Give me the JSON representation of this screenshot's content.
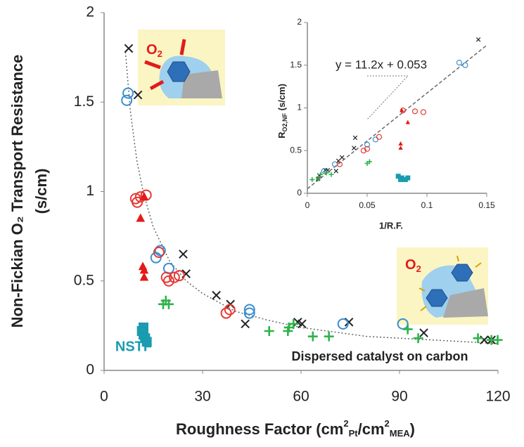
{
  "chart_data": [
    {
      "type": "scatter",
      "y_title": "Non-Fickian O₂ Transport Resistance",
      "y_title_2": "(s/cm)",
      "x_title": [
        "Roughness Factor (cm",
        "2",
        "Pt",
        "/cm",
        "2",
        "MEA",
        ")"
      ],
      "xlim": [
        0,
        120
      ],
      "xticks": [
        0,
        30,
        60,
        90,
        120
      ],
      "ylim": [
        0,
        2
      ],
      "yticks": [
        0,
        0.5,
        1,
        {
          "value": 1.5,
          "label": "1.5"
        },
        2
      ],
      "annotations": [
        "NSTF",
        "Dispersed catalyst on carbon"
      ],
      "illustration_labels": [
        [
          "O",
          "2"
        ],
        [
          "O",
          "2"
        ]
      ],
      "fit": {
        "color": "#666",
        "x": [
          6.5,
          8,
          10,
          12,
          15,
          20,
          25,
          30,
          40,
          50,
          60,
          80,
          100,
          120
        ],
        "values": [
          1.78,
          1.45,
          1.17,
          0.99,
          0.8,
          0.61,
          0.5,
          0.43,
          0.33,
          0.28,
          0.24,
          0.19,
          0.17,
          0.15
        ]
      },
      "series": [
        {
          "marker": "x",
          "color": "#222",
          "x": [
            7.5,
            10.3,
            24.1,
            25,
            34.2,
            38.5,
            43,
            59,
            60.3,
            74.6,
            97.4,
            115.8,
            118
          ],
          "values": [
            1.8,
            1.54,
            0.65,
            0.54,
            0.42,
            0.37,
            0.26,
            0.27,
            0.26,
            0.27,
            0.21,
            0.17,
            0.17
          ]
        },
        {
          "marker": "circle",
          "color": "#3a8fd0",
          "x": [
            6.9,
            7.3,
            15.8,
            17.1,
            19.7,
            44.3,
            44.3,
            72.8,
            91
          ],
          "values": [
            1.51,
            1.55,
            0.63,
            0.67,
            0.57,
            0.34,
            0.32,
            0.26,
            0.26
          ]
        },
        {
          "marker": "circle",
          "color": "#e53935",
          "x": [
            9.6,
            10.1,
            11.1,
            12.8,
            16.7,
            19,
            19.7,
            21.4,
            22.9,
            37.2,
            38.3
          ],
          "values": [
            0.96,
            0.94,
            0.97,
            0.98,
            0.66,
            0.52,
            0.5,
            0.52,
            0.53,
            0.32,
            0.34
          ]
        },
        {
          "marker": "triangle",
          "color": "#e31b1b",
          "x": [
            12.2,
            11.1,
            11.8,
            12.2,
            12.2
          ],
          "values": [
            0.97,
            0.85,
            0.58,
            0.52,
            0.56
          ]
        },
        {
          "marker": "plus",
          "color": "#2db34a",
          "x": [
            18,
            18.8,
            19.7,
            50.3,
            56,
            56.3,
            57.7,
            63.6,
            68.5,
            92.5,
            95.7,
            113.9,
            118,
            119.9
          ],
          "values": [
            0.37,
            0.39,
            0.37,
            0.22,
            0.22,
            0.24,
            0.26,
            0.19,
            0.19,
            0.23,
            0.18,
            0.18,
            0.17,
            0.17
          ]
        },
        {
          "marker": "square",
          "color": "#1a9bb0",
          "x": [
            11.5,
            12,
            12.5,
            13,
            12
          ],
          "values": [
            0.22,
            0.2,
            0.18,
            0.16,
            0.24
          ]
        }
      ]
    },
    {
      "type": "scatter",
      "y_title": [
        "R",
        "O2,NF",
        " (s/cm)"
      ],
      "x_title": "1/R.F.",
      "equation": "y = 11.2x + 0.053",
      "xlim": [
        0,
        0.15
      ],
      "xticks": [
        0,
        0.05,
        {
          "value": 0.1,
          "label": "0.1"
        },
        0.15
      ],
      "ylim": [
        0,
        2
      ],
      "yticks": [
        0,
        0.5,
        1,
        {
          "value": 1.5,
          "label": "1.5"
        },
        2
      ],
      "fit": {
        "color": "#666",
        "x": [
          0,
          0.15
        ],
        "values": [
          0.053,
          1.733
        ]
      },
      "series": [
        {
          "marker": "x",
          "color": "#222",
          "x": [
            0.143,
            0.04,
            0.039,
            0.029,
            0.026,
            0.024,
            0.017,
            0.015,
            0.01,
            0.009
          ],
          "values": [
            1.8,
            0.65,
            0.53,
            0.42,
            0.38,
            0.26,
            0.27,
            0.27,
            0.21,
            0.17
          ]
        },
        {
          "marker": "circle",
          "color": "#3a8fd0",
          "x": [
            0.127,
            0.132,
            0.05,
            0.057,
            0.023,
            0.014
          ],
          "values": [
            1.53,
            1.5,
            0.57,
            0.63,
            0.34,
            0.26
          ]
        },
        {
          "marker": "circle",
          "color": "#e53935",
          "x": [
            0.09,
            0.097,
            0.08,
            0.06,
            0.05,
            0.047,
            0.027
          ],
          "values": [
            0.96,
            0.95,
            0.97,
            0.66,
            0.52,
            0.5,
            0.34
          ]
        },
        {
          "marker": "triangle",
          "color": "#e31b1b",
          "x": [
            0.079,
            0.084,
            0.078,
            0.078
          ],
          "values": [
            0.97,
            0.83,
            0.58,
            0.53
          ]
        },
        {
          "marker": "plus",
          "color": "#2db34a",
          "x": [
            0.052,
            0.05,
            0.02,
            0.016,
            0.011,
            0.009,
            0.004
          ],
          "values": [
            0.37,
            0.35,
            0.22,
            0.24,
            0.22,
            0.17,
            0.16
          ]
        },
        {
          "marker": "square",
          "color": "#1a9bb0",
          "x": [
            0.076,
            0.079,
            0.082,
            0.084,
            0.078
          ],
          "values": [
            0.2,
            0.18,
            0.16,
            0.18,
            0.16
          ]
        }
      ]
    }
  ]
}
